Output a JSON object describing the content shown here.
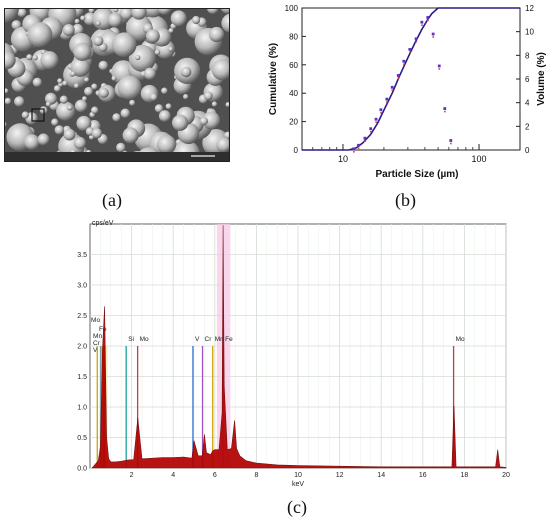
{
  "captions": {
    "a": "(a)",
    "b": "(b)",
    "c": "(c)"
  },
  "sem_image": {
    "description_visible": "",
    "scale_bar_text": ""
  },
  "chart_data": [
    {
      "type": "line",
      "id": "particle-size-distribution",
      "title": "",
      "xlabel": "Particle Size (µm)",
      "ylabel": "Cumulative (%)",
      "y2label": "Volume (%)",
      "xscale": "log",
      "xlim": [
        5,
        200
      ],
      "ylim": [
        0,
        100
      ],
      "y2lim": [
        0,
        12
      ],
      "x_ticks": [
        "10",
        "100"
      ],
      "x_tick_values": [
        10,
        100
      ],
      "y_ticks": [
        "0",
        "20",
        "40",
        "60",
        "80",
        "100"
      ],
      "y_tick_values": [
        0,
        20,
        40,
        60,
        80,
        100
      ],
      "y2_ticks": [
        "0",
        "2",
        "4",
        "6",
        "8",
        "10",
        "12"
      ],
      "y2_tick_values": [
        0,
        2,
        4,
        6,
        8,
        10,
        12
      ],
      "series": [
        {
          "style": "line",
          "axis": "left",
          "color": "#2b1a8c",
          "x": [
            5,
            11,
            12.5,
            14,
            16,
            18,
            20,
            23,
            26,
            30,
            34,
            38,
            42,
            45,
            50,
            60,
            80,
            100,
            150,
            200
          ],
          "y": [
            0,
            0,
            1.5,
            5,
            11,
            19,
            28,
            40,
            52,
            65,
            76,
            85,
            92,
            96,
            100,
            100,
            100,
            100,
            100,
            100
          ]
        },
        {
          "style": "markers",
          "axis": "right",
          "color": "#5a34c8",
          "x": [
            12,
            13,
            14.5,
            16,
            17.5,
            19,
            21,
            23,
            25.5,
            28,
            31,
            34.5,
            38,
            42,
            46,
            51,
            56,
            62
          ],
          "y": [
            0.1,
            0.4,
            1.0,
            1.8,
            2.6,
            3.4,
            4.3,
            5.3,
            6.3,
            7.5,
            8.5,
            9.4,
            10.8,
            11.2,
            9.8,
            7.1,
            3.5,
            0.8
          ]
        }
      ]
    },
    {
      "type": "line",
      "id": "eds-spectrum",
      "title": "",
      "ylabel": "cps/eV",
      "xlabel": "keV",
      "xlim": [
        0,
        20
      ],
      "ylim": [
        0,
        4.0
      ],
      "x_ticks": [
        "2",
        "4",
        "6",
        "8",
        "10",
        "12",
        "14",
        "16",
        "18",
        "20"
      ],
      "x_tick_values": [
        2,
        4,
        6,
        8,
        10,
        12,
        14,
        16,
        18,
        20
      ],
      "y_ticks": [
        "0.0",
        "0.5",
        "1.0",
        "1.5",
        "2.0",
        "2.5",
        "3.0",
        "3.5"
      ],
      "y_tick_values": [
        0,
        0.5,
        1.0,
        1.5,
        2.0,
        2.5,
        3.0,
        3.5
      ],
      "series": [
        {
          "style": "filled",
          "color": "#b20000",
          "x": [
            0.1,
            0.4,
            0.5,
            0.6,
            0.7,
            0.8,
            0.9,
            1.0,
            1.2,
            1.5,
            1.8,
            2.1,
            2.3,
            2.5,
            3.0,
            3.5,
            4.0,
            4.5,
            4.9,
            5.0,
            5.2,
            5.4,
            5.5,
            5.6,
            5.8,
            5.9,
            6.0,
            6.2,
            6.35,
            6.4,
            6.45,
            6.6,
            6.8,
            6.95,
            7.05,
            7.2,
            7.5,
            8.0,
            9.0,
            10.0,
            12.0,
            14.0,
            16.0,
            17.4,
            17.5,
            17.6,
            18.5,
            19.5,
            19.6,
            19.7,
            20.0
          ],
          "y": [
            0.0,
            0.12,
            0.35,
            1.95,
            2.65,
            0.5,
            0.15,
            0.1,
            0.1,
            0.11,
            0.13,
            0.14,
            0.82,
            0.15,
            0.16,
            0.17,
            0.17,
            0.18,
            0.16,
            0.45,
            0.2,
            0.2,
            0.55,
            0.25,
            0.22,
            0.28,
            0.3,
            0.3,
            0.9,
            4.5,
            1.35,
            0.3,
            0.32,
            0.78,
            0.32,
            0.2,
            0.12,
            0.08,
            0.05,
            0.04,
            0.03,
            0.02,
            0.02,
            0.02,
            1.02,
            0.02,
            0.02,
            0.02,
            0.3,
            0.02,
            0.01
          ]
        }
      ],
      "element_markers": [
        {
          "label": "Mo",
          "x": 0.35,
          "color": "#c8a800"
        },
        {
          "label": "Fe",
          "x": 0.7,
          "color": "#b20000"
        },
        {
          "label": "Mn",
          "x": 0.65,
          "color": "#8b5a2b"
        },
        {
          "label": "Cr",
          "x": 0.57,
          "color": "#d7b400"
        },
        {
          "label": "V",
          "x": 0.51,
          "color": "#3070d0"
        },
        {
          "label": "Si",
          "x": 1.74,
          "color": "#1aa39a"
        },
        {
          "label": "Mo",
          "x": 2.29,
          "color": "#c04040"
        },
        {
          "label": "V",
          "x": 4.95,
          "color": "#3070d0"
        },
        {
          "label": "Cr",
          "x": 5.41,
          "color": "#a050c0"
        },
        {
          "label": "Mn",
          "x": 5.9,
          "color": "#d0a000"
        },
        {
          "label": "Fe",
          "x": 6.4,
          "color": "#b20000"
        },
        {
          "label": "Mo",
          "x": 17.48,
          "color": "#c04040"
        }
      ]
    }
  ]
}
